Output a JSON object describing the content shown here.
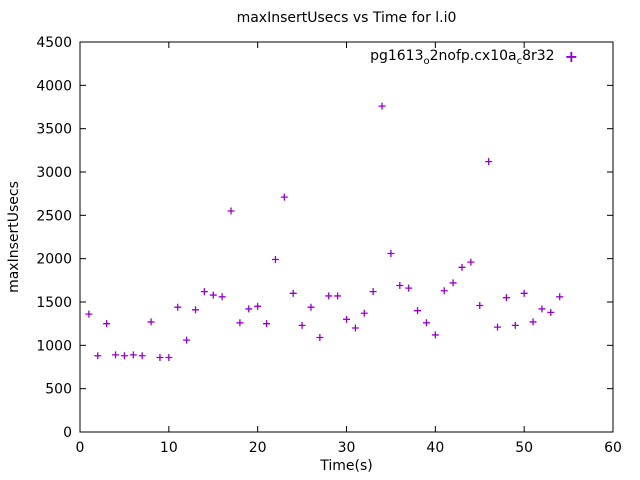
{
  "title": "maxInsertUsecs vs Time for l.i0",
  "legend": {
    "marker": "+",
    "parts": [
      {
        "text": "pg1613"
      },
      {
        "text": "o"
      },
      {
        "text": "2nofp.cx10a"
      },
      {
        "text": "c"
      },
      {
        "text": "8r32"
      }
    ]
  },
  "colors": {
    "points": "#9400d3",
    "axis": "#000000",
    "background": "#ffffff"
  },
  "chart_data": {
    "type": "scatter",
    "title": "maxInsertUsecs vs Time for l.i0",
    "xlabel": "Time(s)",
    "ylabel": "maxInsertUsecs",
    "xlim": [
      0,
      60
    ],
    "ylim": [
      0,
      4500
    ],
    "xticks": [
      0,
      10,
      20,
      30,
      40,
      50,
      60
    ],
    "yticks": [
      0,
      500,
      1000,
      1500,
      2000,
      2500,
      3000,
      3500,
      4000,
      4500
    ],
    "grid": false,
    "legend_position": "top-right-inside",
    "series": [
      {
        "name": "pg1613_o2nofp.cx10a_c8r32",
        "marker": "plus",
        "color": "#9400d3",
        "points": [
          [
            1,
            1360
          ],
          [
            2,
            880
          ],
          [
            3,
            1250
          ],
          [
            4,
            890
          ],
          [
            5,
            880
          ],
          [
            6,
            890
          ],
          [
            7,
            880
          ],
          [
            8,
            1270
          ],
          [
            9,
            860
          ],
          [
            10,
            860
          ],
          [
            11,
            1440
          ],
          [
            12,
            1060
          ],
          [
            13,
            1410
          ],
          [
            14,
            1620
          ],
          [
            15,
            1580
          ],
          [
            16,
            1560
          ],
          [
            17,
            2550
          ],
          [
            18,
            1260
          ],
          [
            19,
            1420
          ],
          [
            20,
            1450
          ],
          [
            21,
            1250
          ],
          [
            22,
            1990
          ],
          [
            23,
            2710
          ],
          [
            24,
            1600
          ],
          [
            25,
            1230
          ],
          [
            26,
            1440
          ],
          [
            27,
            1090
          ],
          [
            28,
            1570
          ],
          [
            29,
            1570
          ],
          [
            30,
            1300
          ],
          [
            31,
            1200
          ],
          [
            32,
            1370
          ],
          [
            33,
            1620
          ],
          [
            34,
            3760
          ],
          [
            35,
            2060
          ],
          [
            36,
            1690
          ],
          [
            37,
            1660
          ],
          [
            38,
            1400
          ],
          [
            39,
            1260
          ],
          [
            40,
            1120
          ],
          [
            41,
            1630
          ],
          [
            42,
            1720
          ],
          [
            43,
            1900
          ],
          [
            44,
            1960
          ],
          [
            45,
            1460
          ],
          [
            46,
            3120
          ],
          [
            47,
            1210
          ],
          [
            48,
            1550
          ],
          [
            49,
            1230
          ],
          [
            50,
            1600
          ],
          [
            51,
            1270
          ],
          [
            52,
            1420
          ],
          [
            53,
            1380
          ],
          [
            54,
            1560
          ]
        ]
      }
    ]
  }
}
